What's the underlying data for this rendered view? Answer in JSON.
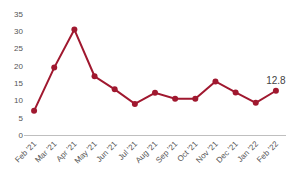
{
  "chart_data": {
    "type": "line",
    "categories": [
      "Feb '21",
      "Mar '21",
      "Apr '21",
      "May '21",
      "Jun '21",
      "Jul '21",
      "Aug '21",
      "Sep '21",
      "Oct '21",
      "Nov '21",
      "Dec '21",
      "Jan '22",
      "Feb '22"
    ],
    "values": [
      7,
      19.5,
      30.5,
      17,
      13.2,
      9,
      12.2,
      10.5,
      10.5,
      15.5,
      12.3,
      9.3,
      12.8
    ],
    "data_labels": true,
    "value_labels": [
      null,
      null,
      null,
      null,
      null,
      null,
      null,
      null,
      null,
      null,
      null,
      null,
      "12.8"
    ],
    "color": "#a0182f",
    "marker": "circle",
    "ylim": [
      0,
      35
    ],
    "yticks": [
      0,
      5,
      10,
      15,
      20,
      25,
      30,
      35
    ],
    "grid": false
  }
}
